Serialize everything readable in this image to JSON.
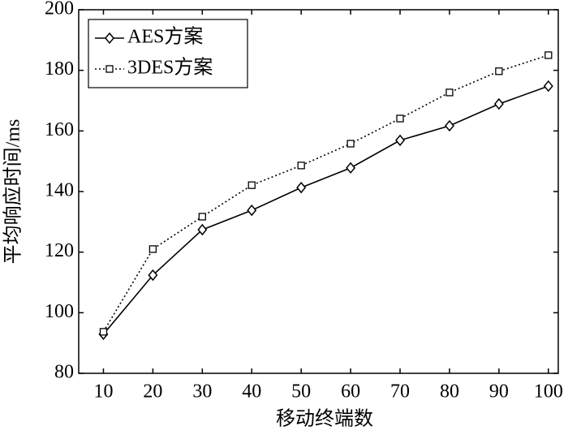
{
  "chart_data": {
    "type": "line",
    "x_label": "移动终端数",
    "y_label": "平均响应时间/ms",
    "x": [
      10,
      20,
      30,
      40,
      50,
      60,
      70,
      80,
      90,
      100
    ],
    "series": [
      {
        "name": "AES方案",
        "color": "#000000",
        "marker": "diamond",
        "dash": "solid",
        "values": [
          92.9,
          112.4,
          127.4,
          133.8,
          141.3,
          147.8,
          156.9,
          161.7,
          168.9,
          174.8
        ]
      },
      {
        "name": "3DES方案",
        "color": "#000000",
        "marker": "square",
        "dash": "dotted",
        "values": [
          93.7,
          121.0,
          131.7,
          142.1,
          148.6,
          155.8,
          164.1,
          172.7,
          179.7,
          185.0
        ]
      }
    ],
    "xlim": [
      5,
      102
    ],
    "ylim": [
      80,
      200
    ],
    "xticks": [
      10,
      20,
      30,
      40,
      50,
      60,
      70,
      80,
      90,
      100
    ],
    "yticks": [
      80,
      100,
      120,
      140,
      160,
      180,
      200
    ],
    "legend": "upper-left"
  }
}
